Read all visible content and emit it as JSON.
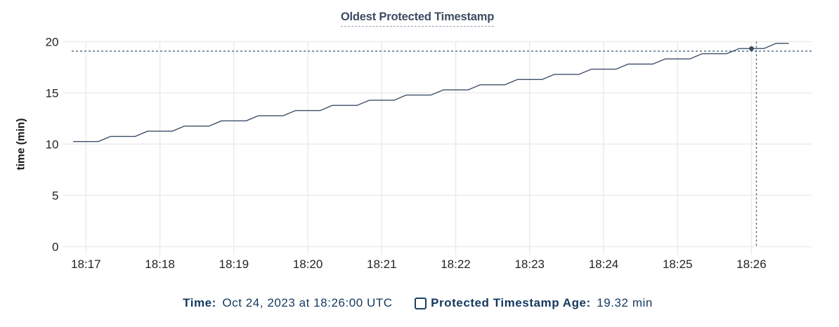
{
  "chart": {
    "title": "Oldest Protected Timestamp",
    "ylabel": "time (min)",
    "colors": {
      "series_line": "#3e4e68",
      "hover_dot": "#394a63",
      "crosshair": "#54748c",
      "gridline": "#ececec",
      "tick_text": "#202326",
      "title_text": "#3e4b61",
      "legend_text": "#14395e"
    }
  },
  "chart_data": {
    "type": "line",
    "title": "Oldest Protected Timestamp",
    "xlabel": "",
    "ylabel": "time (min)",
    "ylim": [
      0,
      20
    ],
    "y_ticks": [
      0,
      5,
      10,
      15,
      20
    ],
    "x_ticks": [
      "18:17",
      "18:18",
      "18:19",
      "18:20",
      "18:21",
      "18:22",
      "18:23",
      "18:24",
      "18:25",
      "18:26"
    ],
    "grid": "on",
    "legend_position": "bottom",
    "series": [
      {
        "name": "Protected Timestamp Age",
        "unit": "min",
        "points": [
          {
            "t": "18:16:50",
            "v": 10.25
          },
          {
            "t": "18:17:00",
            "v": 10.25
          },
          {
            "t": "18:17:10",
            "v": 10.25
          },
          {
            "t": "18:17:20",
            "v": 10.75
          },
          {
            "t": "18:17:30",
            "v": 10.75
          },
          {
            "t": "18:17:40",
            "v": 10.75
          },
          {
            "t": "18:17:50",
            "v": 11.26
          },
          {
            "t": "18:18:00",
            "v": 11.26
          },
          {
            "t": "18:18:10",
            "v": 11.26
          },
          {
            "t": "18:18:20",
            "v": 11.76
          },
          {
            "t": "18:18:30",
            "v": 11.76
          },
          {
            "t": "18:18:40",
            "v": 11.76
          },
          {
            "t": "18:18:50",
            "v": 12.27
          },
          {
            "t": "18:19:00",
            "v": 12.27
          },
          {
            "t": "18:19:10",
            "v": 12.27
          },
          {
            "t": "18:19:20",
            "v": 12.77
          },
          {
            "t": "18:19:30",
            "v": 12.77
          },
          {
            "t": "18:19:40",
            "v": 12.77
          },
          {
            "t": "18:19:50",
            "v": 13.27
          },
          {
            "t": "18:20:00",
            "v": 13.27
          },
          {
            "t": "18:20:10",
            "v": 13.27
          },
          {
            "t": "18:20:20",
            "v": 13.78
          },
          {
            "t": "18:20:30",
            "v": 13.78
          },
          {
            "t": "18:20:40",
            "v": 13.78
          },
          {
            "t": "18:20:50",
            "v": 14.28
          },
          {
            "t": "18:21:00",
            "v": 14.28
          },
          {
            "t": "18:21:10",
            "v": 14.28
          },
          {
            "t": "18:21:20",
            "v": 14.79
          },
          {
            "t": "18:21:30",
            "v": 14.79
          },
          {
            "t": "18:21:40",
            "v": 14.79
          },
          {
            "t": "18:21:50",
            "v": 15.29
          },
          {
            "t": "18:22:00",
            "v": 15.29
          },
          {
            "t": "18:22:10",
            "v": 15.29
          },
          {
            "t": "18:22:20",
            "v": 15.79
          },
          {
            "t": "18:22:30",
            "v": 15.79
          },
          {
            "t": "18:22:40",
            "v": 15.79
          },
          {
            "t": "18:22:50",
            "v": 16.3
          },
          {
            "t": "18:23:00",
            "v": 16.3
          },
          {
            "t": "18:23:10",
            "v": 16.3
          },
          {
            "t": "18:23:20",
            "v": 16.8
          },
          {
            "t": "18:23:30",
            "v": 16.8
          },
          {
            "t": "18:23:40",
            "v": 16.8
          },
          {
            "t": "18:23:50",
            "v": 17.31
          },
          {
            "t": "18:24:00",
            "v": 17.31
          },
          {
            "t": "18:24:10",
            "v": 17.31
          },
          {
            "t": "18:24:20",
            "v": 17.81
          },
          {
            "t": "18:24:30",
            "v": 17.81
          },
          {
            "t": "18:24:40",
            "v": 17.81
          },
          {
            "t": "18:24:50",
            "v": 18.31
          },
          {
            "t": "18:25:00",
            "v": 18.31
          },
          {
            "t": "18:25:10",
            "v": 18.31
          },
          {
            "t": "18:25:20",
            "v": 18.82
          },
          {
            "t": "18:25:30",
            "v": 18.82
          },
          {
            "t": "18:25:40",
            "v": 18.82
          },
          {
            "t": "18:25:50",
            "v": 19.32
          },
          {
            "t": "18:26:00",
            "v": 19.32
          },
          {
            "t": "18:26:10",
            "v": 19.32
          },
          {
            "t": "18:26:20",
            "v": 19.83
          },
          {
            "t": "18:26:30",
            "v": 19.83
          }
        ]
      }
    ],
    "hover": {
      "point": {
        "time": "18:26:00",
        "value": 19.32
      },
      "cursor": {
        "time": "18:26:04",
        "value": 19.07
      }
    }
  },
  "legend": {
    "time_label": "Time:",
    "time_value": "Oct 24, 2023 at 18:26:00 UTC",
    "series_label": "Protected Timestamp Age:",
    "series_value": "19.32 min",
    "checkbox_checked": false
  }
}
